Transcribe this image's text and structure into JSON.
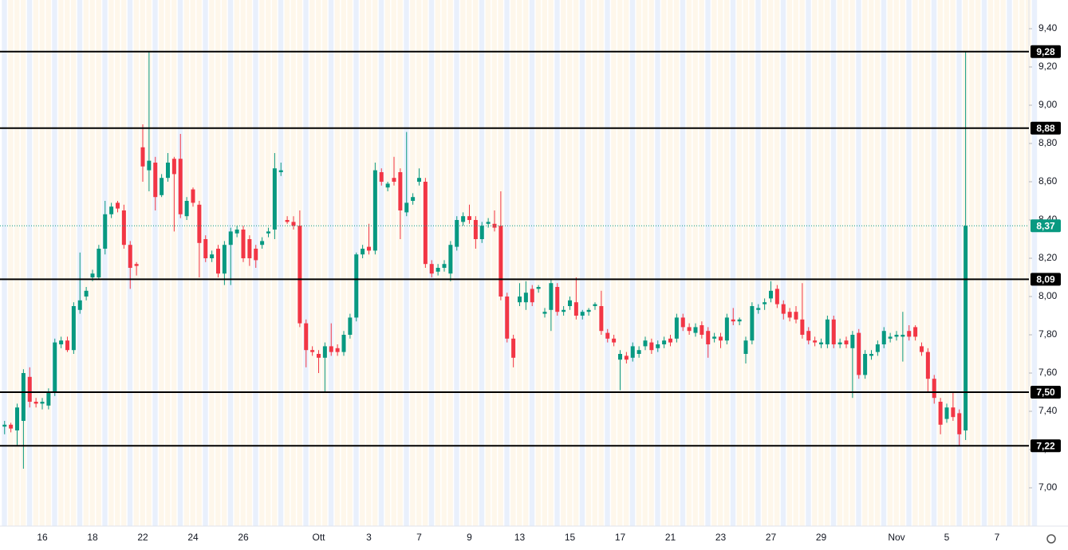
{
  "chart_data": {
    "type": "candlestick",
    "categories": [
      null,
      null,
      null,
      null,
      null,
      null,
      "16",
      null,
      null,
      null,
      null,
      null,
      null,
      null,
      "18",
      null,
      null,
      null,
      null,
      null,
      null,
      null,
      "22",
      null,
      null,
      null,
      null,
      null,
      null,
      null,
      "24",
      null,
      null,
      null,
      null,
      null,
      null,
      null,
      "26",
      null,
      null,
      null,
      null,
      null,
      null,
      null,
      null,
      null,
      null,
      null,
      "Ott",
      null,
      null,
      null,
      null,
      null,
      null,
      null,
      "3",
      null,
      null,
      null,
      null,
      null,
      null,
      null,
      "7",
      null,
      null,
      null,
      null,
      null,
      null,
      null,
      "9",
      null,
      null,
      null,
      null,
      null,
      null,
      null,
      "13",
      null,
      null,
      null,
      null,
      null,
      null,
      null,
      "15",
      null,
      null,
      null,
      null,
      null,
      null,
      null,
      "17",
      null,
      null,
      null,
      null,
      null,
      null,
      null,
      "21",
      null,
      null,
      null,
      null,
      null,
      null,
      null,
      "23",
      null,
      null,
      null,
      null,
      null,
      null,
      null,
      "27",
      null,
      null,
      null,
      null,
      null,
      null,
      null,
      "29",
      null,
      null,
      null,
      null,
      null,
      null,
      null,
      null,
      null,
      null,
      null,
      "Nov",
      null,
      null,
      null,
      null,
      null,
      null,
      null,
      "5",
      null,
      null,
      null,
      null,
      null,
      null,
      null,
      "7"
    ],
    "open": [
      7.32,
      7.33,
      7.3,
      7.35,
      7.58,
      7.45,
      7.44,
      7.43,
      7.5,
      7.75,
      7.77,
      7.72,
      7.93,
      8.0,
      8.1,
      8.1,
      8.25,
      8.43,
      8.49,
      8.45,
      8.27,
      8.17,
      8.78,
      8.66,
      8.7,
      8.53,
      8.62,
      8.72,
      8.72,
      8.42,
      8.56,
      8.48,
      8.3,
      8.2,
      8.25,
      8.12,
      8.27,
      8.33,
      8.35,
      8.3,
      8.25,
      8.27,
      8.33,
      8.35,
      8.65,
      8.4,
      8.39,
      8.37,
      7.86,
      7.72,
      7.7,
      7.68,
      7.74,
      7.73,
      7.71,
      7.8,
      7.89,
      8.22,
      8.26,
      8.24,
      8.65,
      8.57,
      8.62,
      8.65,
      8.44,
      8.5,
      8.6,
      8.6,
      8.17,
      8.13,
      8.15,
      8.12,
      8.26,
      8.39,
      8.42,
      8.4,
      8.3,
      8.38,
      8.38,
      8.37,
      8.0,
      7.78,
      7.97,
      7.97,
      8.04,
      8.04,
      7.91,
      7.93,
      8.05,
      7.92,
      7.95,
      7.97,
      7.9,
      7.92,
      7.95,
      7.95,
      7.81,
      7.78,
      7.67,
      7.69,
      7.68,
      7.7,
      7.74,
      7.76,
      7.73,
      7.75,
      7.78,
      7.78,
      7.89,
      7.84,
      7.81,
      7.85,
      7.82,
      7.78,
      7.79,
      7.77,
      7.88,
      7.87,
      7.7,
      7.77,
      7.93,
      7.96,
      7.99,
      8.04,
      7.96,
      7.92,
      7.92,
      7.88,
      7.82,
      7.77,
      7.75,
      7.75,
      7.88,
      7.75,
      7.77,
      7.73,
      7.81,
      7.59,
      7.69,
      7.71,
      7.75,
      7.78,
      7.79,
      7.79,
      7.82,
      7.84,
      7.74,
      7.71,
      7.57,
      7.45,
      7.36,
      7.42,
      7.39,
      7.3,
      null,
      null,
      null,
      null,
      null
    ],
    "high": [
      7.35,
      7.34,
      7.44,
      7.62,
      7.63,
      7.47,
      7.47,
      7.52,
      7.78,
      7.79,
      7.79,
      7.97,
      8.23,
      8.05,
      8.14,
      8.27,
      8.5,
      8.49,
      8.5,
      8.48,
      8.29,
      8.18,
      8.9,
      9.28,
      8.73,
      8.64,
      8.75,
      8.73,
      8.85,
      8.52,
      8.57,
      8.5,
      8.32,
      8.24,
      8.27,
      8.29,
      8.36,
      8.37,
      8.37,
      8.32,
      8.27,
      8.31,
      8.36,
      8.75,
      8.7,
      8.42,
      8.42,
      8.45,
      7.88,
      7.74,
      7.72,
      7.76,
      7.86,
      7.75,
      7.82,
      7.91,
      8.23,
      8.27,
      8.38,
      8.7,
      8.67,
      8.6,
      8.73,
      8.67,
      8.86,
      8.54,
      8.67,
      8.62,
      8.19,
      8.17,
      8.19,
      8.29,
      8.42,
      8.44,
      8.48,
      8.42,
      8.39,
      8.41,
      8.45,
      8.55,
      8.02,
      7.8,
      8.07,
      8.08,
      8.06,
      8.06,
      7.94,
      8.09,
      8.07,
      7.95,
      8.0,
      8.1,
      7.93,
      7.94,
      7.97,
      8.03,
      7.83,
      7.8,
      7.72,
      7.71,
      7.76,
      7.74,
      7.79,
      7.78,
      7.77,
      7.79,
      7.8,
      7.91,
      7.91,
      7.86,
      7.86,
      7.87,
      7.84,
      7.81,
      7.81,
      7.91,
      7.94,
      7.89,
      7.79,
      7.97,
      7.96,
      7.99,
      8.08,
      8.06,
      7.98,
      7.94,
      7.95,
      8.07,
      7.84,
      7.79,
      7.78,
      7.9,
      7.9,
      7.78,
      7.79,
      7.82,
      7.83,
      7.72,
      7.72,
      7.77,
      7.84,
      7.81,
      7.82,
      7.92,
      7.85,
      7.85,
      7.76,
      7.73,
      7.59,
      7.47,
      7.44,
      7.5,
      7.41,
      9.28,
      null,
      null,
      null,
      null,
      null
    ],
    "low": [
      7.28,
      7.29,
      7.22,
      7.1,
      7.42,
      7.42,
      7.41,
      7.41,
      7.48,
      7.73,
      7.71,
      7.7,
      7.91,
      7.98,
      8.08,
      8.09,
      8.22,
      8.41,
      8.44,
      8.25,
      8.04,
      8.11,
      8.6,
      8.55,
      8.45,
      8.52,
      8.6,
      8.34,
      8.41,
      8.4,
      8.47,
      8.1,
      8.18,
      8.18,
      8.1,
      8.06,
      8.06,
      8.31,
      8.18,
      8.16,
      8.15,
      8.25,
      8.31,
      8.3,
      8.63,
      8.38,
      8.35,
      7.84,
      7.63,
      7.69,
      7.6,
      7.5,
      7.69,
      7.69,
      7.69,
      7.78,
      7.87,
      8.2,
      8.22,
      8.22,
      8.58,
      8.55,
      8.58,
      8.3,
      8.42,
      8.48,
      8.58,
      8.15,
      8.1,
      8.11,
      8.13,
      8.08,
      8.24,
      8.37,
      8.38,
      8.25,
      8.28,
      8.36,
      8.34,
      7.98,
      7.76,
      7.63,
      7.95,
      7.93,
      7.95,
      8.02,
      7.89,
      7.82,
      7.9,
      7.9,
      7.93,
      7.88,
      7.88,
      7.9,
      7.93,
      7.8,
      7.76,
      7.74,
      7.51,
      7.65,
      7.66,
      7.68,
      7.72,
      7.7,
      7.71,
      7.73,
      7.74,
      7.76,
      7.82,
      7.8,
      7.79,
      7.78,
      7.68,
      7.76,
      7.73,
      7.75,
      7.85,
      7.85,
      7.65,
      7.75,
      7.91,
      7.93,
      7.97,
      7.94,
      7.88,
      7.87,
      7.86,
      7.78,
      7.75,
      7.74,
      7.73,
      7.73,
      7.73,
      7.73,
      7.73,
      7.47,
      7.57,
      7.57,
      7.67,
      7.69,
      7.73,
      7.76,
      7.77,
      7.66,
      7.77,
      7.77,
      7.69,
      7.5,
      7.44,
      7.28,
      7.34,
      7.35,
      7.22,
      7.25,
      null,
      null,
      null,
      null,
      null
    ],
    "close": [
      7.33,
      7.31,
      7.42,
      7.6,
      7.45,
      7.44,
      7.45,
      7.5,
      7.76,
      7.77,
      7.72,
      7.95,
      7.98,
      8.03,
      8.12,
      8.25,
      8.43,
      8.47,
      8.46,
      8.27,
      8.15,
      8.16,
      8.68,
      8.71,
      8.52,
      8.62,
      8.7,
      8.64,
      8.43,
      8.5,
      8.49,
      8.28,
      8.2,
      8.22,
      8.12,
      8.27,
      8.34,
      8.35,
      8.2,
      8.2,
      8.19,
      8.29,
      8.34,
      8.67,
      8.66,
      8.39,
      8.37,
      7.86,
      7.72,
      7.71,
      7.68,
      7.74,
      7.71,
      7.71,
      7.8,
      7.89,
      8.22,
      8.25,
      8.24,
      8.66,
      8.6,
      8.59,
      8.6,
      8.45,
      8.49,
      8.52,
      8.62,
      8.17,
      8.12,
      8.15,
      8.17,
      8.27,
      8.4,
      8.42,
      8.4,
      8.3,
      8.37,
      8.39,
      8.36,
      8.0,
      7.78,
      7.68,
      8.0,
      8.02,
      7.97,
      8.05,
      7.92,
      8.07,
      7.92,
      7.93,
      7.98,
      7.9,
      7.92,
      7.93,
      7.96,
      7.82,
      7.78,
      7.76,
      7.7,
      7.67,
      7.74,
      7.72,
      7.77,
      7.72,
      7.75,
      7.77,
      7.76,
      7.89,
      7.84,
      7.82,
      7.84,
      7.8,
      7.75,
      7.79,
      7.77,
      7.89,
      7.87,
      7.88,
      7.77,
      7.95,
      7.94,
      7.97,
      8.03,
      7.96,
      7.91,
      7.89,
      7.88,
      7.8,
      7.77,
      7.76,
      7.76,
      7.88,
      7.75,
      7.76,
      7.75,
      7.8,
      7.59,
      7.7,
      7.7,
      7.75,
      7.82,
      7.79,
      7.8,
      7.8,
      7.79,
      7.79,
      7.71,
      7.57,
      7.47,
      7.33,
      7.42,
      7.37,
      7.28,
      8.37,
      null,
      null,
      null,
      null,
      null
    ],
    "up_color": "#089981",
    "down_color": "#f23645",
    "ylim": [
      6.8,
      9.55
    ],
    "yticks": [
      {
        "value": 7.0,
        "label": "7,00"
      },
      {
        "value": 7.2,
        "label": "7,20"
      },
      {
        "value": 7.4,
        "label": "7,40"
      },
      {
        "value": 7.6,
        "label": "7,60"
      },
      {
        "value": 7.8,
        "label": "7,80"
      },
      {
        "value": 8.0,
        "label": "8,00"
      },
      {
        "value": 8.2,
        "label": "8,20"
      },
      {
        "value": 8.4,
        "label": "8,40"
      },
      {
        "value": 8.6,
        "label": "8,60"
      },
      {
        "value": 8.8,
        "label": "8,80"
      },
      {
        "value": 9.0,
        "label": "9,00"
      },
      {
        "value": 9.2,
        "label": "9,20"
      },
      {
        "value": 9.4,
        "label": "9,40"
      }
    ],
    "levels": [
      {
        "value": 9.28,
        "label": "9,28"
      },
      {
        "value": 8.88,
        "label": "8,88"
      },
      {
        "value": 8.09,
        "label": "8,09"
      },
      {
        "value": 7.5,
        "label": "7,50"
      },
      {
        "value": 7.22,
        "label": "7,22"
      }
    ],
    "level_color": "#000000",
    "last_price": {
      "value": 8.37,
      "label": "8,37"
    }
  }
}
